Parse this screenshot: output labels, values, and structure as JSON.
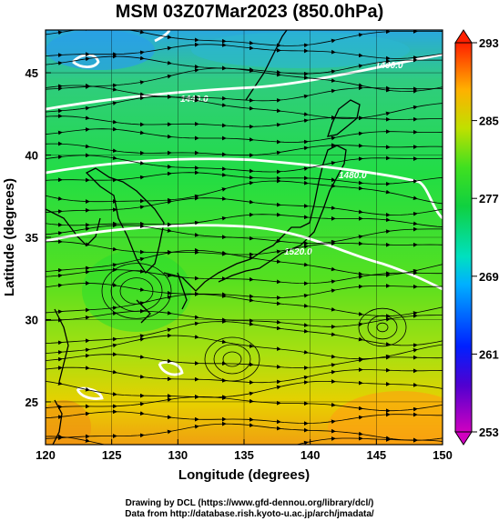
{
  "title": "MSM 03Z07Mar2023 (850.0hPa)",
  "xlabel": "Longitude (degrees)",
  "ylabel": "Latitude  (degrees)",
  "credits": [
    "Drawing by DCL (https://www.gfd-dennou.org/library/dcl/)",
    "Data from http://database.rish.kyoto-u.ac.jp/arch/jmadata/"
  ],
  "map": {
    "lon_range": [
      120,
      150
    ],
    "lat_range": [
      22.4,
      47.6
    ],
    "lon_ticks": [
      120,
      125,
      130,
      135,
      140,
      145,
      150
    ],
    "lat_ticks": [
      25,
      30,
      35,
      40,
      45
    ],
    "grid": true,
    "colorbar": {
      "ticks": [
        293,
        285,
        277,
        269,
        261,
        253
      ],
      "range": [
        253,
        293
      ],
      "colors": [
        "#cc00cc",
        "#2020c0",
        "#0050ff",
        "#00c8ff",
        "#00e080",
        "#30e020",
        "#c0e000",
        "#f0c000",
        "#ff6000",
        "#ff2000"
      ]
    },
    "contours": [
      {
        "label": "1400.0"
      },
      {
        "label": "1440.0"
      },
      {
        "label": "1480.0"
      },
      {
        "label": "1520.0"
      }
    ]
  }
}
